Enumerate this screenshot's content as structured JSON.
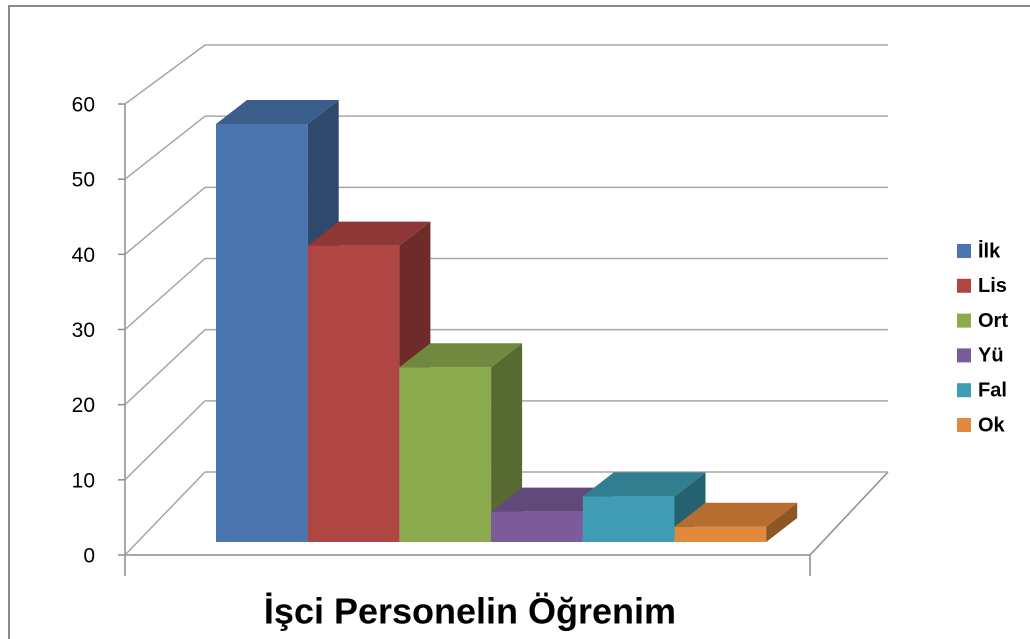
{
  "chart_data": {
    "type": "bar",
    "title": "İşci Personelin Öğrenim",
    "series": [
      {
        "name": "İlk",
        "color": "#4a75ae",
        "values": [
          55
        ]
      },
      {
        "name": "Lis",
        "color": "#b04643",
        "values": [
          39
        ]
      },
      {
        "name": "Ort",
        "color": "#8cab4f",
        "values": [
          23
        ]
      },
      {
        "name": "Yü",
        "color": "#7b5b9a",
        "values": [
          4
        ]
      },
      {
        "name": "Fal",
        "color": "#3e9db5",
        "values": [
          6
        ]
      },
      {
        "name": "Ok",
        "color": "#e28a3c",
        "values": [
          2
        ]
      }
    ],
    "ylim": [
      0,
      60
    ],
    "yticks": [
      0,
      10,
      20,
      30,
      40,
      50,
      60
    ],
    "grid": true,
    "legend": "right"
  }
}
